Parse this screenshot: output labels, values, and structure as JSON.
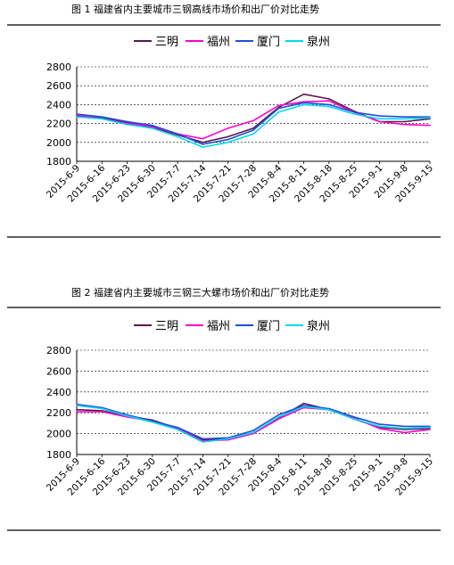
{
  "chart_data": [
    {
      "type": "line",
      "title": "图 1  福建省内主要城市三钢高线市场价和出厂价对比走势",
      "ylim": [
        1800,
        2800
      ],
      "yticks": [
        1800,
        2000,
        2200,
        2400,
        2600,
        2800
      ],
      "grid": "horizontal dashed",
      "legend": "top",
      "categories": [
        "2015-6-9",
        "2015-6-16",
        "2015-6-23",
        "2015-6-30",
        "2015-7-7",
        "2015-7-14",
        "2015-7-21",
        "2015-7-28",
        "2015-8-4",
        "2015-8-11",
        "2015-8-18",
        "2015-8-25",
        "2015-9-1",
        "2015-9-8",
        "2015-9-15"
      ],
      "series": [
        {
          "name": "三明",
          "color": "#5a1a4a",
          "values": [
            2280,
            2260,
            2210,
            2160,
            2080,
            2000,
            2060,
            2150,
            2370,
            2510,
            2460,
            2330,
            2220,
            2220,
            2250
          ]
        },
        {
          "name": "福州",
          "color": "#ff00cc",
          "values": [
            2290,
            2250,
            2200,
            2170,
            2090,
            2040,
            2150,
            2230,
            2390,
            2430,
            2440,
            2320,
            2220,
            2190,
            2180
          ]
        },
        {
          "name": "厦门",
          "color": "#1f4ed8",
          "values": [
            2300,
            2270,
            2220,
            2180,
            2090,
            1980,
            2030,
            2130,
            2360,
            2420,
            2400,
            2320,
            2280,
            2270,
            2270
          ]
        },
        {
          "name": "泉州",
          "color": "#00d8f0",
          "values": [
            2270,
            2250,
            2190,
            2150,
            2060,
            1950,
            2000,
            2090,
            2320,
            2400,
            2380,
            2300,
            2250,
            2250,
            2260
          ]
        }
      ]
    },
    {
      "type": "line",
      "title": "图 2  福建省内主要城市三钢三大螺市场价和出厂价对比走势",
      "ylim": [
        1800,
        2800
      ],
      "yticks": [
        1800,
        2000,
        2200,
        2400,
        2600,
        2800
      ],
      "grid": "horizontal dashed",
      "legend": "top",
      "categories": [
        "2015-6-9",
        "2015-6-16",
        "2015-6-23",
        "2015-6-30",
        "2015-7-7",
        "2015-7-14",
        "2015-7-21",
        "2015-7-28",
        "2015-8-4",
        "2015-8-11",
        "2015-8-18",
        "2015-8-25",
        "2015-9-1",
        "2015-9-8",
        "2015-9-15"
      ],
      "series": [
        {
          "name": "三明",
          "color": "#5a1a4a",
          "values": [
            2230,
            2220,
            2170,
            2130,
            2050,
            1940,
            1950,
            2010,
            2150,
            2290,
            2230,
            2140,
            2060,
            2040,
            2050
          ]
        },
        {
          "name": "福州",
          "color": "#ff00cc",
          "values": [
            2210,
            2210,
            2160,
            2120,
            2050,
            1930,
            1940,
            2000,
            2140,
            2250,
            2230,
            2150,
            2050,
            2010,
            2040
          ]
        },
        {
          "name": "厦门",
          "color": "#1f4ed8",
          "values": [
            2280,
            2250,
            2180,
            2120,
            2060,
            1950,
            1960,
            2030,
            2180,
            2270,
            2240,
            2160,
            2090,
            2070,
            2070
          ]
        },
        {
          "name": "泉州",
          "color": "#00d8f0",
          "values": [
            2270,
            2240,
            2170,
            2110,
            2040,
            1920,
            1950,
            2010,
            2160,
            2260,
            2230,
            2140,
            2070,
            2050,
            2060
          ]
        }
      ]
    }
  ]
}
